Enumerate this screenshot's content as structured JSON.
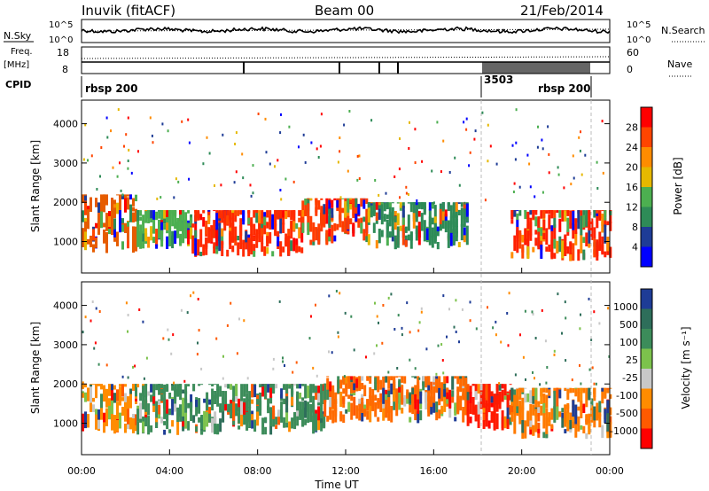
{
  "header": {
    "station": "Inuvik (fitACF)",
    "beam": "Beam 00",
    "date": "21/Feb/2014"
  },
  "top_panels": {
    "nsky_label": "N.Sky",
    "nsky_ticks": [
      "10^5",
      "10^0"
    ],
    "nsearch_label": "N.Search",
    "nsearch_ticks": [
      "10^5",
      "10^0"
    ],
    "freq_label": "Freq.",
    "freq_unit": "[MHz]",
    "freq_ticks": [
      "18",
      "8"
    ],
    "nave_label": "Nave",
    "nave_ticks": [
      "60",
      "0"
    ],
    "cpid_label": "CPID",
    "cpid_segments": [
      {
        "start": 0.0,
        "end": 17.9,
        "label": "rbsp 200"
      },
      {
        "start": 17.9,
        "end": 19.7,
        "label": "3503"
      },
      {
        "start": 19.7,
        "end": 23.0,
        "label": "rbsp 200"
      }
    ]
  },
  "chart_data": [
    {
      "type": "heatmap",
      "name": "power-panel",
      "ylabel": "Slant Range [km]",
      "yticks": [
        1000,
        2000,
        3000,
        4000
      ],
      "ylim": [
        200,
        4600
      ],
      "xlim": [
        0,
        24
      ],
      "colorbar_label": "Power [dB]",
      "colorbar_ticks": [
        "28",
        "24",
        "20",
        "16",
        "12",
        "8",
        "4"
      ],
      "colorbar_colors": [
        "#ff0000",
        "#ff4500",
        "#ff8c00",
        "#e6b800",
        "#4caf50",
        "#2e8b57",
        "#1e3c96",
        "#0000ff"
      ],
      "regions": [
        {
          "t0": 0.0,
          "t1": 2.5,
          "r0": 700,
          "r1": 2200,
          "color": "#e65c00"
        },
        {
          "t0": 2.5,
          "t1": 5.0,
          "r0": 800,
          "r1": 1800,
          "color": "#4caf50"
        },
        {
          "t0": 5.0,
          "t1": 10.0,
          "r0": 600,
          "r1": 1800,
          "color": "#ff2a00"
        },
        {
          "t0": 10.0,
          "t1": 13.0,
          "r0": 900,
          "r1": 2100,
          "color": "#ff3c00"
        },
        {
          "t0": 13.0,
          "t1": 17.5,
          "r0": 800,
          "r1": 2000,
          "color": "#2e8b57"
        },
        {
          "t0": 19.5,
          "t1": 24.0,
          "r0": 500,
          "r1": 1800,
          "color": "#ff2000"
        }
      ]
    },
    {
      "type": "heatmap",
      "name": "velocity-panel",
      "ylabel": "Slant Range [km]",
      "yticks": [
        1000,
        2000,
        3000,
        4000
      ],
      "ylim": [
        200,
        4600
      ],
      "xlim": [
        0,
        24
      ],
      "colorbar_label": "Velocity [m s⁻¹]",
      "colorbar_ticks": [
        "1000",
        "500",
        "100",
        "25",
        "-25",
        "-100",
        "-500",
        "-1000"
      ],
      "colorbar_colors": [
        "#1e3c96",
        "#2e6e5a",
        "#3c8c5a",
        "#7cc24c",
        "#c8c8c8",
        "#ff8c00",
        "#ff5a00",
        "#ff0000"
      ],
      "regions": [
        {
          "t0": 0.0,
          "t1": 2.5,
          "r0": 700,
          "r1": 2000,
          "color": "#ff8c00"
        },
        {
          "t0": 2.5,
          "t1": 11.0,
          "r0": 700,
          "r1": 2000,
          "color": "#3c8c5a"
        },
        {
          "t0": 11.0,
          "t1": 17.5,
          "r0": 1000,
          "r1": 2200,
          "color": "#ff6a00"
        },
        {
          "t0": 17.5,
          "t1": 19.5,
          "r0": 800,
          "r1": 2000,
          "color": "#ff1a00"
        },
        {
          "t0": 19.5,
          "t1": 24.0,
          "r0": 600,
          "r1": 1900,
          "color": "#ff7a00"
        }
      ],
      "xticks": [
        "00:00",
        "04:00",
        "08:00",
        "12:00",
        "16:00",
        "20:00",
        "00:00"
      ],
      "xlabel": "Time UT"
    }
  ]
}
